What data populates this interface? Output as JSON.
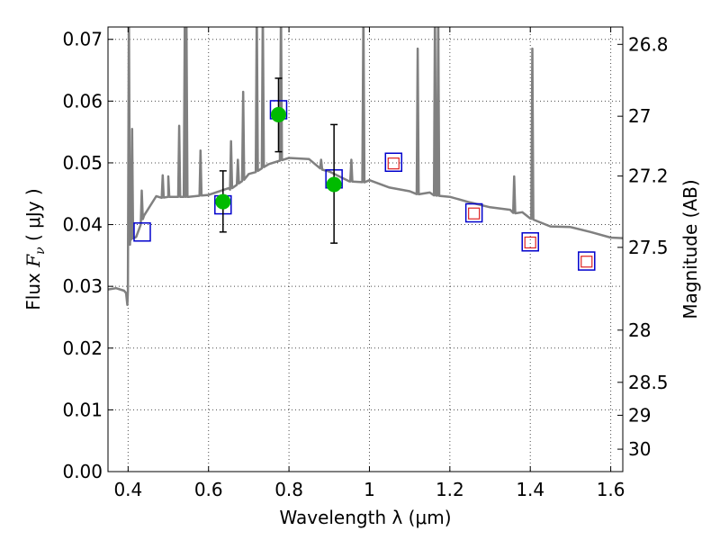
{
  "chart_data": {
    "type": "scatter",
    "xlabel": "Wavelength  λ (μm)",
    "ylabel_text": "Flux  ",
    "ylabel_symbol": "F",
    "ylabel_sub": "ν",
    "ylabel_unit": "  ( μJy )",
    "right_ylabel": "Magnitude (AB)",
    "xlim": [
      0.35,
      1.63
    ],
    "ylim": [
      0.0,
      0.072
    ],
    "grid": true,
    "x_ticks": [
      0.4,
      0.6,
      0.8,
      1.0,
      1.2,
      1.4,
      1.6
    ],
    "x_tick_labels": [
      "0.4",
      "0.6",
      "0.8",
      "1",
      "1.2",
      "1.4",
      "1.6"
    ],
    "y_ticks": [
      0.0,
      0.01,
      0.02,
      0.03,
      0.04,
      0.05,
      0.06,
      0.07
    ],
    "y_tick_labels": [
      "0.00",
      "0.01",
      "0.02",
      "0.03",
      "0.04",
      "0.05",
      "0.06",
      "0.07"
    ],
    "mag_ticks": [
      26.8,
      27,
      27.2,
      27.5,
      28,
      28.5,
      29,
      30
    ],
    "mag_tick_labels": [
      "26.8",
      "27",
      "27.2",
      "27.5",
      "28",
      "28.5",
      "29",
      "30"
    ],
    "observed_points": {
      "color": "#00bb00",
      "x": [
        0.636,
        0.774,
        0.912
      ],
      "y": [
        0.0437,
        0.0578,
        0.0465
      ],
      "yerr_low": [
        0.0388,
        0.0518,
        0.037
      ],
      "yerr_high": [
        0.0487,
        0.0637,
        0.0562
      ]
    },
    "model_band_squares": {
      "color": "#0000cc",
      "x": [
        0.435,
        0.636,
        0.774,
        0.912,
        1.06,
        1.26,
        1.4,
        1.54
      ],
      "y": [
        0.0388,
        0.0432,
        0.0586,
        0.0474,
        0.0501,
        0.0419,
        0.0372,
        0.0341
      ]
    },
    "upper_limit_squares": {
      "color": "#dd2222",
      "x": [
        1.06,
        1.26,
        1.4,
        1.54
      ],
      "y": [
        0.0499,
        0.0418,
        0.0371,
        0.034
      ]
    },
    "spectrum": {
      "color": "#808080",
      "continuum": [
        [
          0.35,
          0.0295
        ],
        [
          0.37,
          0.0293
        ],
        [
          0.39,
          0.0293
        ],
        [
          0.395,
          0.0285
        ],
        [
          0.398,
          0.027
        ],
        [
          0.405,
          0.0375
        ],
        [
          0.42,
          0.038
        ],
        [
          0.44,
          0.0415
        ],
        [
          0.47,
          0.0442
        ],
        [
          0.5,
          0.0445
        ],
        [
          0.55,
          0.0445
        ],
        [
          0.6,
          0.0448
        ],
        [
          0.65,
          0.0455
        ],
        [
          0.7,
          0.0478
        ],
        [
          0.75,
          0.0498
        ],
        [
          0.8,
          0.0508
        ],
        [
          0.85,
          0.0502
        ],
        [
          0.9,
          0.0482
        ],
        [
          0.95,
          0.047
        ],
        [
          1.0,
          0.0468
        ],
        [
          1.05,
          0.046
        ],
        [
          1.1,
          0.045
        ],
        [
          1.15,
          0.0448
        ],
        [
          1.2,
          0.0445
        ],
        [
          1.25,
          0.0432
        ],
        [
          1.3,
          0.0428
        ],
        [
          1.35,
          0.042
        ],
        [
          1.38,
          0.0416
        ],
        [
          1.4,
          0.041
        ],
        [
          1.45,
          0.0397
        ],
        [
          1.5,
          0.0392
        ],
        [
          1.55,
          0.0388
        ],
        [
          1.6,
          0.0375
        ],
        [
          1.63,
          0.0378
        ]
      ],
      "emission_lines": [
        [
          0.402,
          0.075
        ],
        [
          0.41,
          0.0555
        ],
        [
          0.434,
          0.0455
        ],
        [
          0.486,
          0.048
        ],
        [
          0.5,
          0.0478
        ],
        [
          0.527,
          0.056
        ],
        [
          0.541,
          0.075
        ],
        [
          0.545,
          0.075
        ],
        [
          0.58,
          0.052
        ],
        [
          0.656,
          0.0535
        ],
        [
          0.673,
          0.0505
        ],
        [
          0.686,
          0.0615
        ],
        [
          0.72,
          0.075
        ],
        [
          0.735,
          0.075
        ],
        [
          0.78,
          0.075
        ],
        [
          0.88,
          0.0505
        ],
        [
          0.955,
          0.0505
        ],
        [
          0.985,
          0.075
        ],
        [
          1.12,
          0.0685
        ],
        [
          1.163,
          0.075
        ],
        [
          1.171,
          0.075
        ],
        [
          1.36,
          0.0478
        ],
        [
          1.405,
          0.0685
        ]
      ]
    }
  }
}
